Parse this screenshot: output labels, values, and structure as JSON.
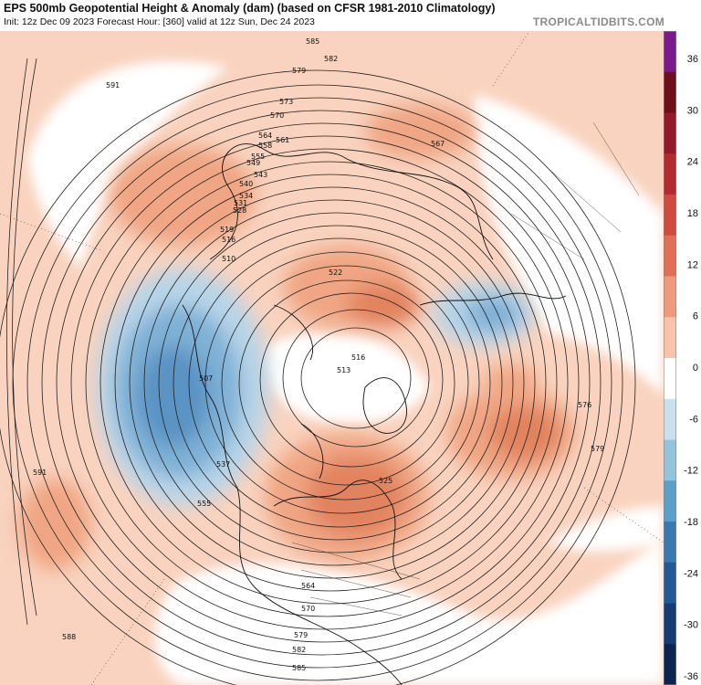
{
  "header": {
    "title": "EPS 500mb Geopotential Height & Anomaly (dam) (based on CFSR 1981-2010 Climatology)",
    "subtitle": "Init: 12z Dec 09 2023   Forecast Hour: [360]   valid at 12z Sun, Dec 24 2023",
    "brand": "TROPICALTIDBITS.COM"
  },
  "colorbar": {
    "ticks": [
      "36",
      "30",
      "24",
      "18",
      "12",
      "6",
      "0",
      "-6",
      "-12",
      "-18",
      "-24",
      "-30",
      "-36"
    ],
    "colors": [
      "#7a1a8c",
      "#6e0f1a",
      "#94192a",
      "#b52a30",
      "#d04a3d",
      "#e26f55",
      "#ef9a7c",
      "#f7c4ab",
      "#ffffff",
      "#c9e1ee",
      "#93c4de",
      "#5b9fcb",
      "#3978b0",
      "#235996",
      "#163c73",
      "#0c2550"
    ]
  },
  "map": {
    "contour_labels": [
      "585",
      "582",
      "579",
      "576",
      "573",
      "570",
      "567",
      "564",
      "561",
      "558",
      "555",
      "549",
      "543",
      "540",
      "537",
      "534",
      "531",
      "528",
      "525",
      "522",
      "519",
      "516",
      "513",
      "510",
      "507",
      "591",
      "588"
    ],
    "anomaly_colors": {
      "positive_light": "#f9cbb3",
      "positive_mid": "#f0a684",
      "positive_strong": "#e2835f",
      "negative_light": "#b7d4e8",
      "negative_mid": "#7fb0d6",
      "negative_strong": "#5a93c4"
    }
  }
}
